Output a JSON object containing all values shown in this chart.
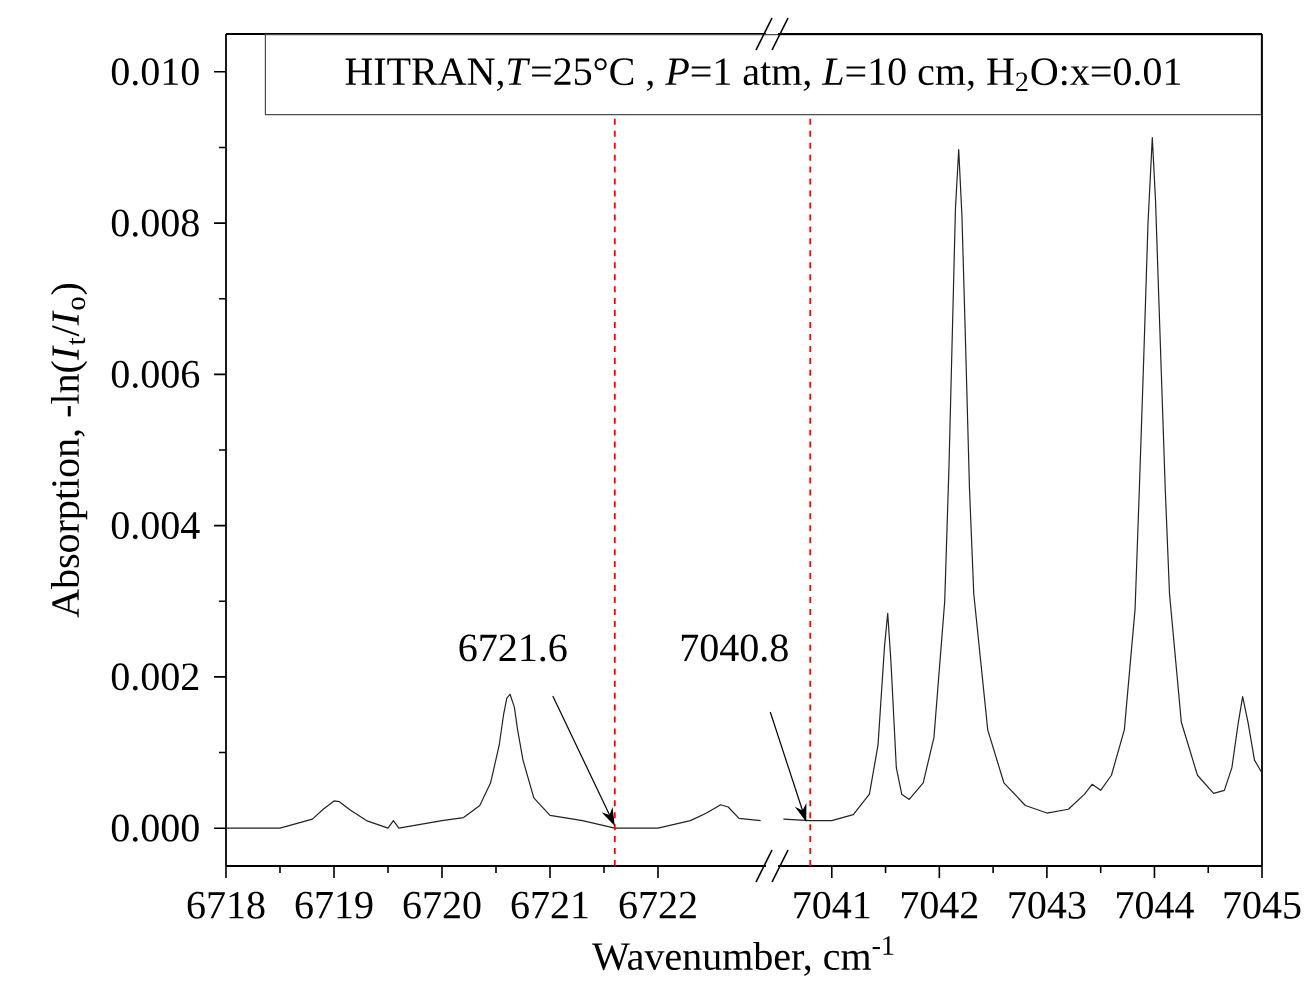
{
  "chart_data": [
    {
      "type": "line",
      "xlabel": "Wavenumber, cm$^{-1}$",
      "ylabel": "Absorption, -ln(*I*$_{t}$/*I*$_{o}$)",
      "annotations": [
        "HITRAN,*T*=25°C , *P*=1 atm, *L*=10 cm, H$_{2}$O:x=0.01"
      ],
      "xlim": [
        6718,
        6723
      ],
      "xticks": [
        6718,
        6719,
        6720,
        6721,
        6722
      ],
      "ylim": [
        -0.0005,
        0.0105
      ],
      "yticks": [
        {
          "value": 0,
          "label": "0.000"
        },
        {
          "value": 0.002,
          "label": "0.002"
        },
        {
          "value": 0.004,
          "label": "0.004"
        },
        {
          "value": 0.006,
          "label": "0.006"
        },
        {
          "value": 0.008,
          "label": "0.008"
        },
        {
          "value": 0.01,
          "label": "0.010"
        }
      ],
      "series": [
        {
          "color": "#222222",
          "x": [
            6718,
            6718.5,
            6718.8,
            6718.9,
            6719.0,
            6719.05,
            6719.15,
            6719.3,
            6719.5,
            6719.55,
            6719.6,
            6720.0,
            6720.2,
            6720.35,
            6720.45,
            6720.53,
            6720.57,
            6720.6,
            6720.63,
            6720.67,
            6720.7,
            6720.75,
            6720.85,
            6721.0,
            6721.3,
            6721.6,
            6722.0,
            6722.3,
            6722.45,
            6722.58,
            6722.65,
            6722.75,
            6722.95
          ],
          "values": [
            0,
            0,
            0.00012,
            0.00025,
            0.00036,
            0.00035,
            0.00024,
            0.0001,
            0,
            0.0001,
            0,
            0.0001,
            0.00014,
            0.0003,
            0.0006,
            0.0011,
            0.0015,
            0.00172,
            0.00177,
            0.0016,
            0.0013,
            0.0009,
            0.0004,
            0.00017,
            0.0001,
            0,
            0,
            0.0001,
            0.0002,
            0.00031,
            0.00028,
            0.00013,
            0.0001
          ]
        }
      ],
      "ref_lines": [
        {
          "axis": "x",
          "value": 6721.6,
          "label": "6721.6",
          "color": "#ff0000",
          "line_style": "dashed"
        }
      ]
    },
    {
      "type": "line",
      "xlim": [
        7040.5,
        7045
      ],
      "xticks": [
        7041,
        7042,
        7043,
        7044,
        7045
      ],
      "ylim": [
        -0.0005,
        0.0105
      ],
      "tick_labels": "x",
      "series": [
        {
          "color": "#222222",
          "x": [
            7040.55,
            7040.8,
            7041.0,
            7041.2,
            7041.35,
            7041.43,
            7041.49,
            7041.52,
            7041.55,
            7041.6,
            7041.65,
            7041.72,
            7041.85,
            7041.95,
            7042.05,
            7042.09,
            7042.12,
            7042.15,
            7042.18,
            7042.21,
            7042.24,
            7042.28,
            7042.32,
            7042.45,
            7042.6,
            7042.8,
            7043.0,
            7043.2,
            7043.35,
            7043.42,
            7043.5,
            7043.6,
            7043.72,
            7043.82,
            7043.86,
            7043.9,
            7043.94,
            7043.98,
            7044.01,
            7044.05,
            7044.1,
            7044.14,
            7044.25,
            7044.4,
            7044.55,
            7044.65,
            7044.72,
            7044.78,
            7044.82,
            7044.87,
            7044.93,
            7045
          ],
          "values": [
            0.00012,
            0.0001,
            0.0001,
            0.00018,
            0.00045,
            0.0011,
            0.0024,
            0.00284,
            0.0022,
            0.0008,
            0.00045,
            0.00038,
            0.0006,
            0.0012,
            0.003,
            0.0048,
            0.0065,
            0.0082,
            0.00897,
            0.0081,
            0.0066,
            0.0045,
            0.0031,
            0.0013,
            0.0006,
            0.0003,
            0.0002,
            0.00025,
            0.00045,
            0.00058,
            0.0005,
            0.0007,
            0.0013,
            0.0029,
            0.0045,
            0.0062,
            0.008,
            0.00913,
            0.0083,
            0.0066,
            0.0045,
            0.0031,
            0.0014,
            0.0007,
            0.00046,
            0.0005,
            0.0008,
            0.0014,
            0.00174,
            0.0014,
            0.0009,
            0.00073
          ]
        }
      ],
      "ref_lines": [
        {
          "axis": "x",
          "value": 7040.8,
          "label": "7040.8",
          "color": "#ff0000",
          "line_style": "dashed"
        }
      ]
    }
  ]
}
